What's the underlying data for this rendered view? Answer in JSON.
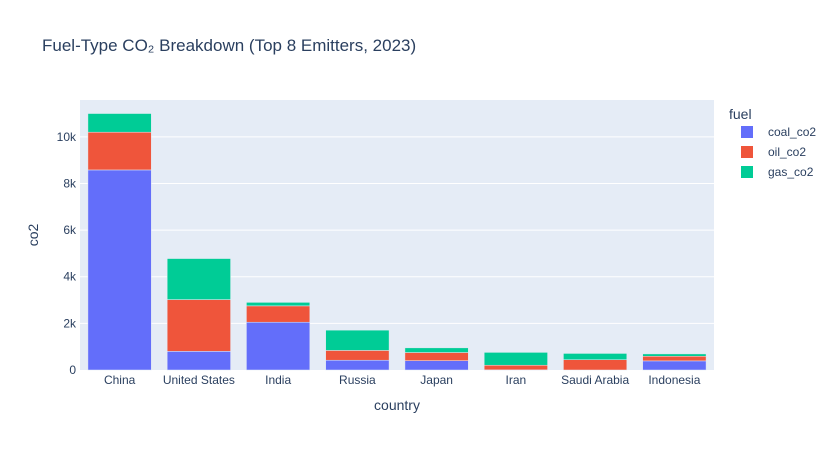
{
  "chart_data": {
    "type": "bar",
    "barmode": "stack",
    "title": "Fuel-Type CO₂ Breakdown (Top 8 Emitters, 2023)",
    "xlabel": "country",
    "ylabel": "co2",
    "categories": [
      "China",
      "United States",
      "India",
      "Russia",
      "Japan",
      "Iran",
      "Saudi Arabia",
      "Indonesia"
    ],
    "ylim": [
      0,
      11580
    ],
    "yticks": [
      0,
      2000,
      4000,
      6000,
      8000,
      10000
    ],
    "ytick_labels": [
      "0",
      "2k",
      "4k",
      "6k",
      "8k",
      "10k"
    ],
    "grid": true,
    "legend": {
      "title": "fuel",
      "position": "top-right"
    },
    "series": [
      {
        "name": "coal_co2",
        "color": "#636efa",
        "values": [
          8580,
          800,
          2050,
          420,
          400,
          5,
          0,
          390
        ]
      },
      {
        "name": "oil_co2",
        "color": "#ef553b",
        "values": [
          1620,
          2220,
          700,
          420,
          350,
          200,
          440,
          200
        ]
      },
      {
        "name": "gas_co2",
        "color": "#00cc96",
        "values": [
          800,
          1760,
          150,
          870,
          200,
          550,
          270,
          100
        ]
      }
    ],
    "colors": {
      "plot_background": "#e5ecf6",
      "grid": "#ffffff",
      "text": "#2a3f5f"
    }
  }
}
